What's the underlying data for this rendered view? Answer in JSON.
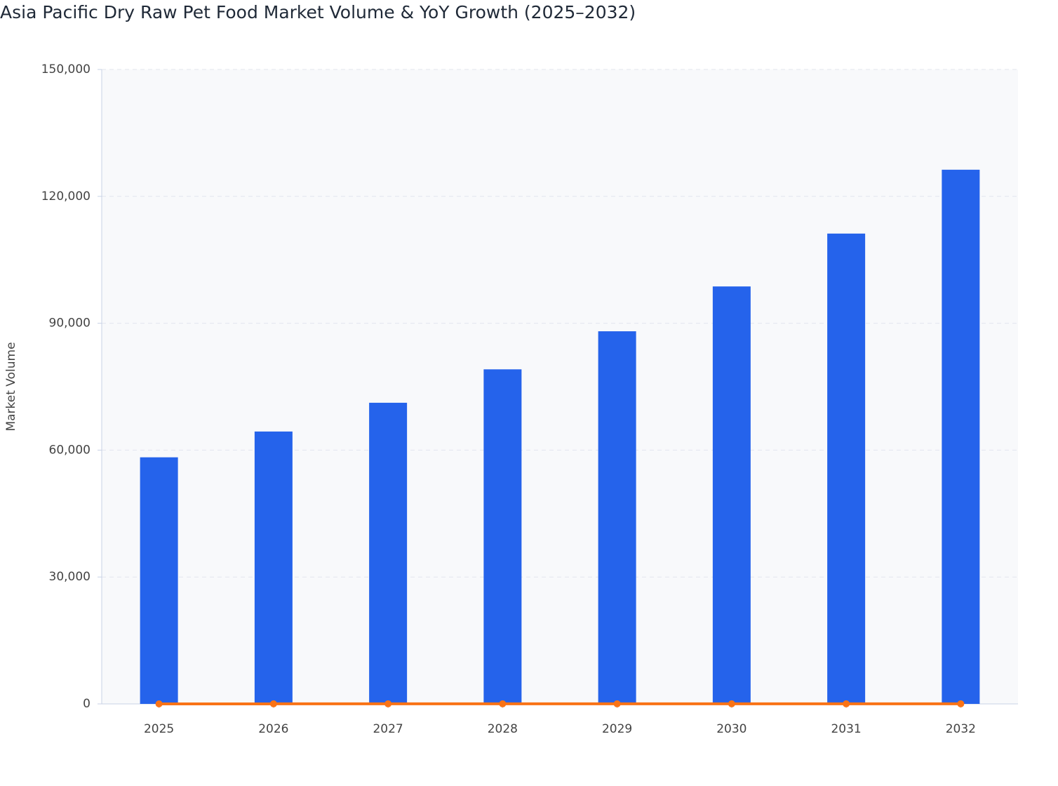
{
  "chart_data": {
    "type": "bar",
    "title": "Asia Pacific Dry Raw Pet Food Market Volume & YoY Growth (2025–2032)",
    "y_label": "Market Volume",
    "categories": [
      "2025",
      "2026",
      "2027",
      "2028",
      "2029",
      "2030",
      "2031",
      "2032"
    ],
    "series": [
      {
        "type": "bar",
        "color": "#2563eb",
        "values": [
          58300,
          64400,
          71200,
          79100,
          88100,
          98700,
          111200,
          126300
        ]
      },
      {
        "type": "line",
        "color": "#f97316",
        "values": [
          0,
          10.5,
          10.6,
          11.1,
          11.4,
          12.0,
          12.7,
          13.6
        ]
      }
    ],
    "ylim": [
      0,
      150000
    ],
    "yticks": [
      0,
      {
        "value": 30000,
        "label": "30,000"
      },
      {
        "value": 60000,
        "label": "60,000"
      },
      {
        "value": 90000,
        "label": "90,000"
      },
      {
        "value": 120000,
        "label": "120,000"
      },
      {
        "value": 150000,
        "label": "150,000"
      }
    ],
    "grid": true
  }
}
